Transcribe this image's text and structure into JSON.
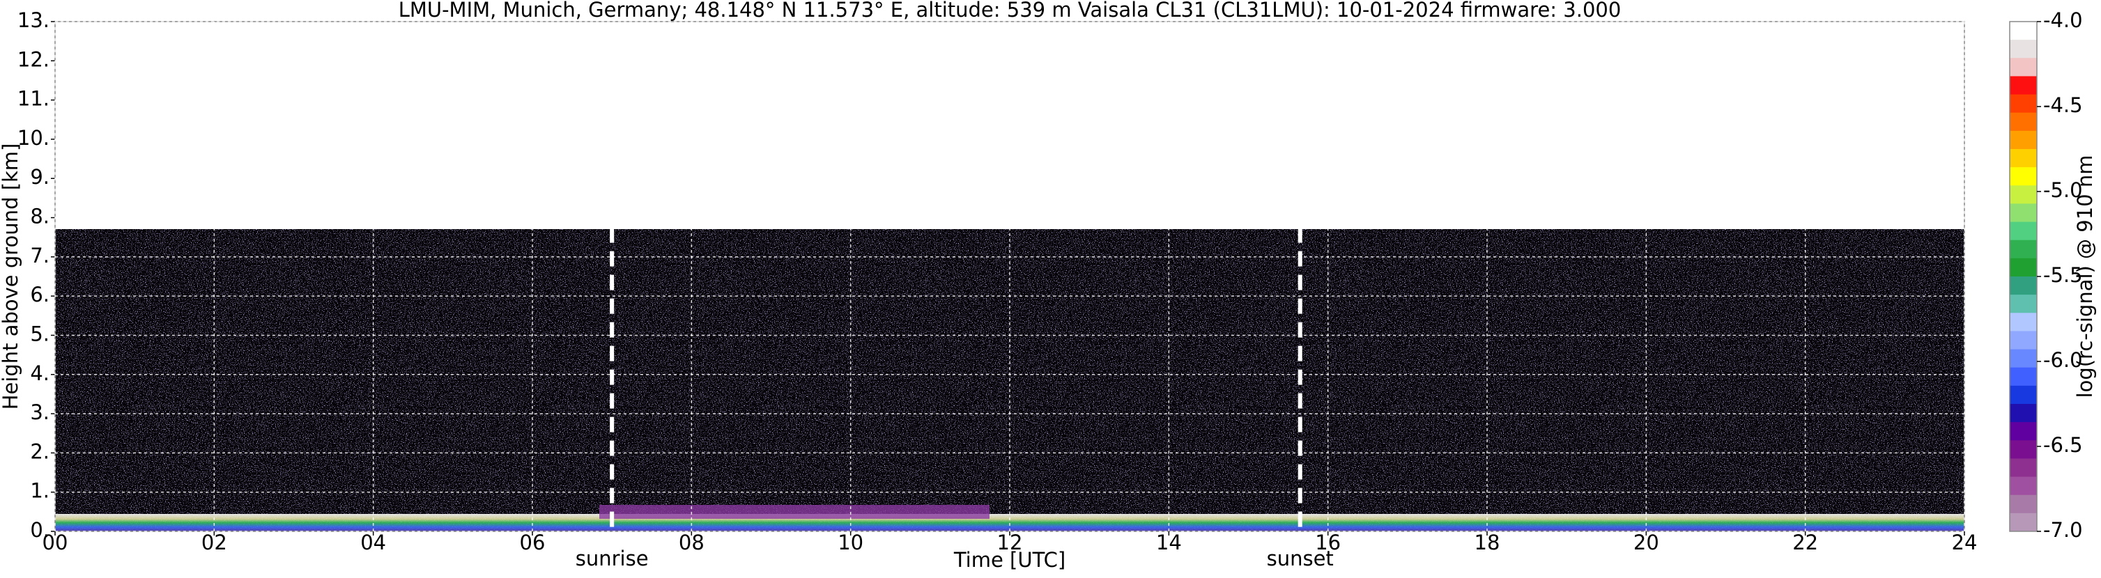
{
  "chart_data": {
    "type": "heatmap",
    "title": "LMU-MIM, Munich, Germany; 48.148° N 11.573° E, altitude: 539 m    Vaisala CL31 (CL31LMU): 10-01-2024    firmware: 3.000",
    "xlabel": "Time [UTC]",
    "ylabel": "Height above ground [km]",
    "xlim": [
      0,
      24
    ],
    "xticks": [
      {
        "value": 0,
        "label": "00"
      },
      {
        "value": 2,
        "label": "02"
      },
      {
        "value": 4,
        "label": "04"
      },
      {
        "value": 6,
        "label": "06"
      },
      {
        "value": 8,
        "label": "08"
      },
      10,
      12,
      14,
      16,
      18,
      20,
      22,
      24
    ],
    "ylim": [
      0,
      13
    ],
    "yticks": [
      {
        "value": 0,
        "label": "0."
      },
      {
        "value": 1,
        "label": "1."
      },
      {
        "value": 2,
        "label": "2."
      },
      {
        "value": 3,
        "label": "3."
      },
      {
        "value": 4,
        "label": "4."
      },
      {
        "value": 5,
        "label": "5."
      },
      {
        "value": 6,
        "label": "6."
      },
      {
        "value": 7,
        "label": "7."
      },
      {
        "value": 8,
        "label": "8."
      },
      {
        "value": 9,
        "label": "9."
      },
      {
        "value": 10,
        "label": "10."
      },
      {
        "value": 11,
        "label": "11."
      },
      {
        "value": 12,
        "label": "12."
      },
      {
        "value": 13,
        "label": "13."
      }
    ],
    "grid": true,
    "annotations": [
      {
        "label": "sunrise",
        "x": 7.0
      },
      {
        "label": "sunset",
        "x": 15.65
      }
    ],
    "colorbar": {
      "label": "log(rc-signal) @ 910 nm",
      "lim": [
        -7,
        -4
      ],
      "ticks": [
        {
          "value": -4,
          "label": "-4.0"
        },
        -4.5,
        {
          "value": -5,
          "label": "-5.0"
        },
        -5.5,
        {
          "value": -6,
          "label": "-6.0"
        },
        -6.5,
        {
          "value": -7,
          "label": "-7.0"
        }
      ],
      "colors": [
        "#ffffff",
        "#e8e2e2",
        "#f2c4c4",
        "#ff1010",
        "#ff4000",
        "#ff7000",
        "#ffa000",
        "#ffd000",
        "#ffff00",
        "#c8f040",
        "#90e070",
        "#50d080",
        "#30b050",
        "#20a030",
        "#30a080",
        "#60c0b0",
        "#b0c8ff",
        "#90a8ff",
        "#6888ff",
        "#4060ff",
        "#1838e0",
        "#2010b0",
        "#6000a0",
        "#7a1090",
        "#8e3090",
        "#a050a0",
        "#a87aa8",
        "#b898b8"
      ]
    }
  }
}
